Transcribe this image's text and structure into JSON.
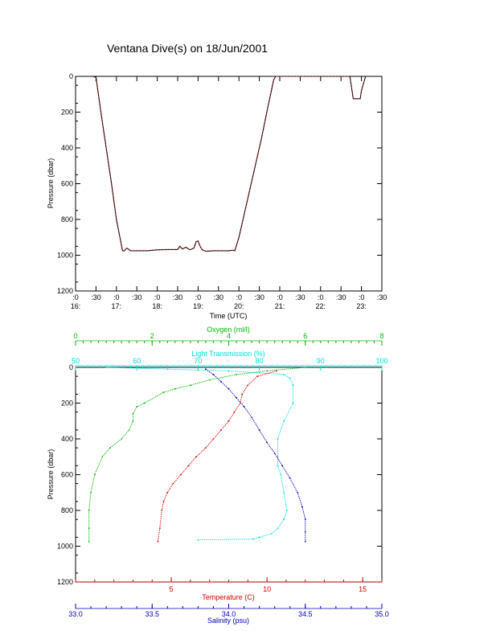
{
  "figure": {
    "title": "Ventana Dive(s) on 18/Jun/2001"
  },
  "colors": {
    "frame": "#000000",
    "depth_line": "#000000",
    "depth_line_overlay": "#dd0000",
    "temperature": "#dd0000",
    "salinity": "#0000bb",
    "oxygen": "#00bb00",
    "light_transmission": "#00dddd"
  },
  "chart_data": [
    {
      "type": "line",
      "ylabel": "Pressure (dbar)",
      "xlabel": "Time (UTC)",
      "ylim": [
        1200,
        0
      ],
      "yticks": [
        0,
        200,
        400,
        600,
        800,
        1000,
        1200
      ],
      "xlim": [
        16.0,
        23.5
      ],
      "xtick_minutes": [
        ":0",
        ":30",
        ":0",
        ":30",
        ":0",
        ":30",
        ":0",
        ":30",
        ":0",
        ":30",
        ":0",
        ":30",
        ":0",
        ":30",
        ":0",
        ":30"
      ],
      "xtick_hours": [
        "16:",
        "17:",
        "18:",
        "19:",
        "20:",
        "21:",
        "22:",
        "23:"
      ],
      "series": [
        {
          "x": [
            16.42,
            16.5,
            16.62,
            16.75,
            16.88,
            17.0,
            17.15,
            17.2,
            17.25,
            17.35,
            17.5,
            17.75,
            18.0,
            18.25,
            18.5,
            18.55,
            18.62,
            18.7,
            18.8,
            18.9,
            18.95,
            19.0,
            19.05,
            19.1,
            19.2,
            19.4,
            19.6,
            19.75,
            19.85,
            19.9,
            20.0,
            20.1,
            20.25,
            20.4,
            20.55,
            20.7,
            20.85,
            20.9,
            21.2,
            21.6,
            22.0,
            22.3,
            22.5,
            22.7,
            22.72,
            22.8,
            22.9,
            22.97,
            23.0,
            23.1
          ],
          "y": [
            0,
            5,
            200,
            400,
            600,
            800,
            975,
            975,
            960,
            975,
            975,
            975,
            970,
            968,
            968,
            950,
            965,
            955,
            970,
            960,
            925,
            920,
            950,
            970,
            978,
            975,
            975,
            975,
            972,
            975,
            900,
            800,
            650,
            500,
            350,
            180,
            20,
            0,
            0,
            0,
            0,
            0,
            0,
            0,
            5,
            125,
            125,
            125,
            80,
            0
          ]
        }
      ]
    },
    {
      "type": "scatter",
      "ylabel": "Pressure (dbar)",
      "ylim": [
        1200,
        0
      ],
      "yticks": [
        0,
        200,
        400,
        600,
        800,
        1000,
        1200
      ],
      "axes": {
        "oxygen": {
          "label": "Oxygen (ml/l)",
          "range": [
            0,
            8
          ],
          "ticks": [
            "0",
            "2",
            "4",
            "6",
            "8"
          ]
        },
        "light_transmission": {
          "label": "Light Transmission (%)",
          "range": [
            50,
            100
          ],
          "ticks": [
            "50",
            "60",
            "70",
            "80",
            "90",
            "100"
          ]
        },
        "temperature": {
          "label": "Temperature (C)",
          "range": [
            0,
            16
          ],
          "ticks": [
            "5",
            "10",
            "15"
          ]
        },
        "salinity": {
          "label": "Salinity (psu)",
          "range": [
            33.0,
            35.0
          ],
          "ticks": [
            "33.0",
            "33.5",
            "34.0",
            "34.5",
            "35.0"
          ]
        }
      },
      "series": [
        {
          "name": "Oxygen (ml/l)",
          "x": [
            6.0,
            5.0,
            4.2,
            3.5,
            3.0,
            2.6,
            2.3,
            1.8,
            1.6,
            1.5,
            1.5,
            1.4,
            1.2,
            0.9,
            0.7,
            0.5,
            0.4,
            0.35,
            0.35,
            0.35
          ],
          "y": [
            0,
            20,
            40,
            70,
            100,
            120,
            140,
            200,
            220,
            260,
            300,
            350,
            400,
            450,
            500,
            600,
            700,
            800,
            900,
            975
          ]
        },
        {
          "name": "Light Transmission (%)",
          "x": [
            55,
            65,
            75,
            80,
            84,
            85,
            85.5,
            85.5,
            84,
            83,
            83,
            83,
            83.5,
            84,
            84.5,
            84,
            83,
            82,
            80,
            79,
            70
          ],
          "y": [
            0,
            10,
            20,
            30,
            40,
            60,
            100,
            200,
            300,
            400,
            500,
            550,
            600,
            700,
            800,
            850,
            900,
            930,
            950,
            960,
            965
          ]
        },
        {
          "name": "Temperature (C)",
          "x": [
            10.5,
            9.5,
            9.0,
            8.7,
            8.6,
            8.3,
            8.0,
            7.6,
            7.2,
            6.8,
            6.3,
            5.9,
            5.5,
            5.1,
            4.8,
            4.6,
            4.5,
            4.4,
            4.3
          ],
          "y": [
            20,
            50,
            100,
            150,
            200,
            250,
            300,
            350,
            400,
            450,
            500,
            550,
            600,
            650,
            700,
            750,
            800,
            900,
            975
          ]
        },
        {
          "name": "Salinity (psu)",
          "x": [
            33.85,
            33.9,
            33.95,
            34.0,
            34.05,
            34.1,
            34.15,
            34.2,
            34.25,
            34.3,
            34.35,
            34.4,
            34.45,
            34.48,
            34.5,
            34.5,
            34.5
          ],
          "y": [
            10,
            40,
            80,
            120,
            170,
            220,
            280,
            350,
            420,
            480,
            550,
            620,
            700,
            780,
            850,
            920,
            975
          ]
        }
      ]
    }
  ]
}
